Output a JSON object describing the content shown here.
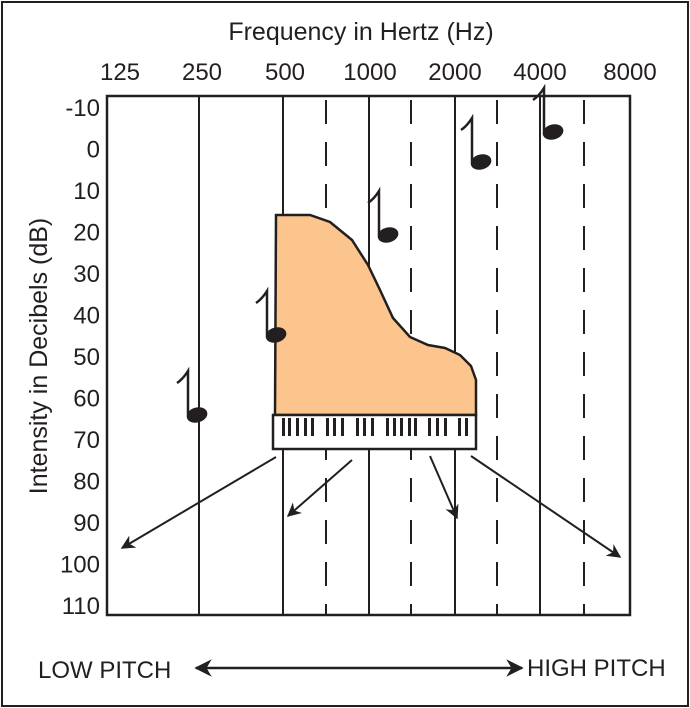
{
  "x_axis": {
    "label": "Frequency in Hertz (Hz)",
    "ticks": [
      "125",
      "250",
      "500",
      "1000",
      "2000",
      "4000",
      "8000"
    ]
  },
  "y_axis": {
    "label": "Intensity in Decibels (dB)",
    "ticks": [
      "-10",
      "0",
      "10",
      "20",
      "30",
      "40",
      "50",
      "60",
      "70",
      "80",
      "90",
      "100",
      "110"
    ]
  },
  "footer": {
    "left": "LOW PITCH",
    "right": "HIGH PITCH"
  }
}
